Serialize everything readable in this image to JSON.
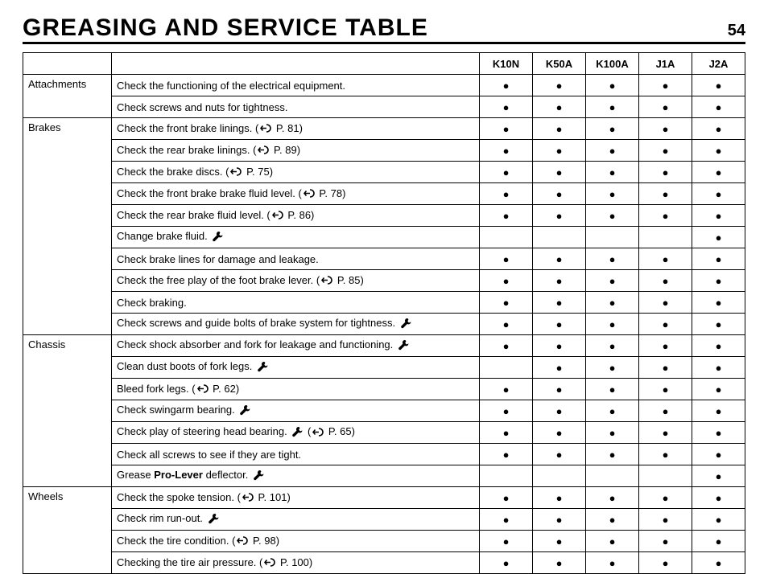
{
  "header": {
    "title": "GREASING AND SERVICE TABLE",
    "page_number": "54"
  },
  "columns": [
    "K10N",
    "K50A",
    "K100A",
    "J1A",
    "J2A"
  ],
  "bullet": "●",
  "sections": [
    {
      "category": "Attachments",
      "rows": [
        {
          "task": "Check the functioning of the electrical equipment.",
          "marks": [
            true,
            true,
            true,
            true,
            true
          ]
        },
        {
          "task": "Check screws and nuts for tightness.",
          "marks": [
            true,
            true,
            true,
            true,
            true
          ]
        }
      ]
    },
    {
      "category": "Brakes",
      "rows": [
        {
          "task": "Check the front brake linings.",
          "ref": "P. 81",
          "marks": [
            true,
            true,
            true,
            true,
            true
          ]
        },
        {
          "task": "Check the rear brake linings.",
          "ref": "P. 89",
          "marks": [
            true,
            true,
            true,
            true,
            true
          ]
        },
        {
          "task": "Check the brake discs.",
          "ref": "P. 75",
          "marks": [
            true,
            true,
            true,
            true,
            true
          ]
        },
        {
          "task": "Check the front brake brake fluid level.",
          "ref": "P. 78",
          "marks": [
            true,
            true,
            true,
            true,
            true
          ]
        },
        {
          "task": "Check the rear brake fluid level.",
          "ref": "P. 86",
          "marks": [
            true,
            true,
            true,
            true,
            true
          ]
        },
        {
          "task": "Change brake fluid.",
          "tool": true,
          "marks": [
            false,
            false,
            false,
            false,
            true
          ]
        },
        {
          "task": "Check brake lines for damage and leakage.",
          "marks": [
            true,
            true,
            true,
            true,
            true
          ]
        },
        {
          "task": "Check the free play of the foot brake lever.",
          "ref": "P. 85",
          "marks": [
            true,
            true,
            true,
            true,
            true
          ]
        },
        {
          "task": "Check braking.",
          "marks": [
            true,
            true,
            true,
            true,
            true
          ]
        },
        {
          "task": "Check screws and guide bolts of brake system for tightness.",
          "tool": true,
          "marks": [
            true,
            true,
            true,
            true,
            true
          ]
        }
      ]
    },
    {
      "category": "Chassis",
      "rows": [
        {
          "task": "Check shock absorber and fork for leakage and functioning.",
          "tool": true,
          "marks": [
            true,
            true,
            true,
            true,
            true
          ]
        },
        {
          "task": "Clean dust boots of fork legs.",
          "tool": true,
          "marks": [
            false,
            true,
            true,
            true,
            true
          ]
        },
        {
          "task": "Bleed fork legs.",
          "ref": "P. 62",
          "marks": [
            true,
            true,
            true,
            true,
            true
          ]
        },
        {
          "task": "Check swingarm bearing.",
          "tool": true,
          "marks": [
            true,
            true,
            true,
            true,
            true
          ]
        },
        {
          "task": "Check play of steering head bearing.",
          "tool": true,
          "ref": "P. 65",
          "marks": [
            true,
            true,
            true,
            true,
            true
          ]
        },
        {
          "task": "Check all screws to see if they are tight.",
          "marks": [
            true,
            true,
            true,
            true,
            true
          ]
        },
        {
          "task_html": "Grease <span class=\"bold\">Pro-Lever</span> deflector.",
          "tool": true,
          "marks": [
            false,
            false,
            false,
            false,
            true
          ]
        }
      ]
    },
    {
      "category": "Wheels",
      "rows": [
        {
          "task": "Check the spoke tension.",
          "ref": "P. 101",
          "marks": [
            true,
            true,
            true,
            true,
            true
          ]
        },
        {
          "task": "Check rim run-out.",
          "tool": true,
          "marks": [
            true,
            true,
            true,
            true,
            true
          ]
        },
        {
          "task": "Check the tire condition.",
          "ref": "P. 98",
          "marks": [
            true,
            true,
            true,
            true,
            true
          ]
        },
        {
          "task": "Checking the tire air pressure.",
          "ref": "P. 100",
          "marks": [
            true,
            true,
            true,
            true,
            true
          ]
        }
      ]
    }
  ]
}
